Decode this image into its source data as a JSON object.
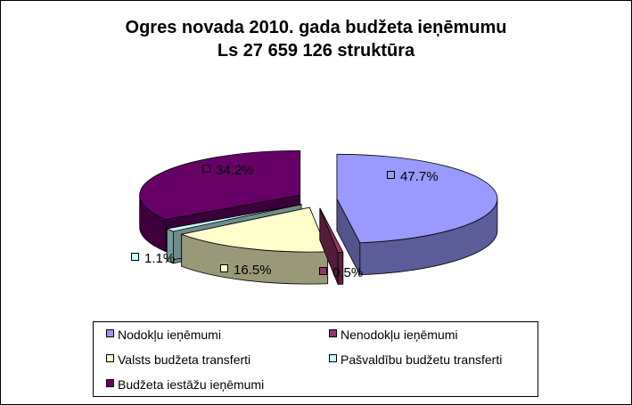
{
  "chart_data": {
    "type": "pie",
    "style": "3d-exploded",
    "title_line1": "Ogres novada 2010. gada budžeta ieņēmumu",
    "title_line2": "Ls 27 659 126 struktūra",
    "slices": [
      {
        "name": "Nodokļu ieņēmumi",
        "value": 47.7,
        "label": "47.7%",
        "color": "#9999FF"
      },
      {
        "name": "Nenodokļu ieņēmumi",
        "value": 0.5,
        "label": "0.5%",
        "color": "#993366"
      },
      {
        "name": "Valsts budžeta transferti",
        "value": 16.5,
        "label": "16.5%",
        "color": "#FFFFCC"
      },
      {
        "name": "Pašvaldību budžetu transferti",
        "value": 1.1,
        "label": "1.1%",
        "color": "#CCFFFF"
      },
      {
        "name": "Budžeta iestāžu ieņēmumi",
        "value": 34.2,
        "label": "34.2%",
        "color": "#660066"
      }
    ],
    "legend_position": "bottom"
  }
}
